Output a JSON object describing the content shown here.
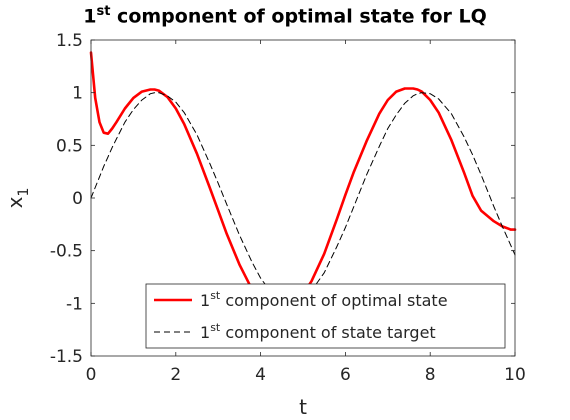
{
  "chart_data": {
    "type": "line",
    "title": {
      "base": "1",
      "sup": "st",
      "rest": " component of optimal state for LQ"
    },
    "xlabel": "t",
    "ylabel": {
      "base": "x",
      "sub": "1"
    },
    "xlim": [
      0,
      10
    ],
    "ylim": [
      -1.5,
      1.5
    ],
    "xticks": [
      0,
      2,
      4,
      6,
      8,
      10
    ],
    "xtick_labels": [
      "0",
      "2",
      "4",
      "6",
      "8",
      "10"
    ],
    "yticks": [
      -1.5,
      -1,
      -0.5,
      0,
      0.5,
      1,
      1.5
    ],
    "ytick_labels": [
      "-1.5",
      "-1",
      "-0.5",
      "0",
      "0.5",
      "1",
      "1.5"
    ],
    "grid": false,
    "legend_position": "bottom-right",
    "x": [
      0,
      0.1,
      0.2,
      0.3,
      0.4,
      0.5,
      0.6,
      0.8,
      1.0,
      1.2,
      1.4,
      1.5,
      1.6,
      1.8,
      2.0,
      2.2,
      2.5,
      2.8,
      3.0,
      3.2,
      3.5,
      3.8,
      4.0,
      4.2,
      4.4,
      4.6,
      4.8,
      5.0,
      5.2,
      5.5,
      5.8,
      6.0,
      6.2,
      6.5,
      6.8,
      7.0,
      7.2,
      7.4,
      7.6,
      7.7,
      7.8,
      8.0,
      8.2,
      8.5,
      8.8,
      9.0,
      9.2,
      9.5,
      9.7,
      9.9,
      10.0
    ],
    "series": [
      {
        "name": {
          "base": "1",
          "sup": "st",
          "rest": " component of optimal state"
        },
        "color": "#ff0000",
        "style": "solid",
        "values": [
          1.38,
          0.95,
          0.72,
          0.62,
          0.61,
          0.66,
          0.72,
          0.85,
          0.95,
          1.01,
          1.03,
          1.03,
          1.02,
          0.96,
          0.85,
          0.7,
          0.42,
          0.1,
          -0.12,
          -0.34,
          -0.63,
          -0.87,
          -0.98,
          -1.04,
          -1.06,
          -1.04,
          -1.0,
          -0.91,
          -0.79,
          -0.53,
          -0.2,
          0.03,
          0.25,
          0.54,
          0.8,
          0.93,
          1.01,
          1.04,
          1.04,
          1.03,
          1.01,
          0.93,
          0.81,
          0.55,
          0.24,
          0.02,
          -0.12,
          -0.22,
          -0.27,
          -0.3,
          -0.3
        ]
      },
      {
        "name": {
          "base": "1",
          "sup": "st",
          "rest": " component of state target"
        },
        "color": "#000000",
        "style": "dashed",
        "values": [
          0.0,
          0.1,
          0.2,
          0.3,
          0.39,
          0.48,
          0.56,
          0.72,
          0.84,
          0.93,
          0.99,
          1.0,
          1.0,
          0.97,
          0.91,
          0.81,
          0.6,
          0.33,
          0.14,
          -0.06,
          -0.35,
          -0.61,
          -0.76,
          -0.87,
          -0.95,
          -0.99,
          -1.0,
          -0.96,
          -0.88,
          -0.71,
          -0.46,
          -0.28,
          -0.08,
          0.22,
          0.49,
          0.66,
          0.79,
          0.9,
          0.97,
          0.99,
          1.0,
          0.99,
          0.94,
          0.8,
          0.58,
          0.41,
          0.22,
          -0.08,
          -0.27,
          -0.45,
          -0.54
        ]
      }
    ]
  }
}
